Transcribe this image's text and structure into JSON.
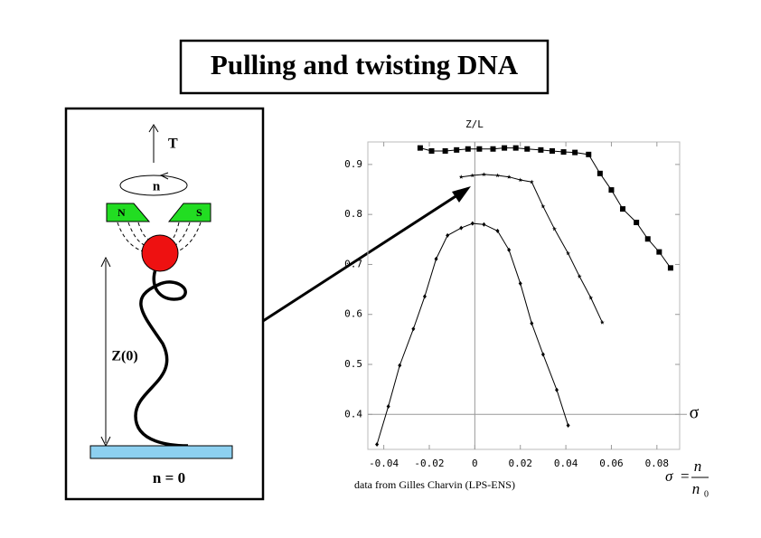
{
  "title": "Pulling and twisting DNA",
  "diagram": {
    "force": "T",
    "twist": "n",
    "magnet_left": "N",
    "magnet_right": "S",
    "extension": "Z(0)",
    "caption": "n = 0"
  },
  "credit": "data from Gilles Charvin (LPS-ENS)",
  "formula": {
    "lhs": "σ",
    "eq": "=",
    "num": "n",
    "den": "n",
    "sub": "0"
  },
  "chart_data": {
    "type": "line",
    "ylabel": "Z/L",
    "xlabel": "σ",
    "xlim": [
      -0.047,
      0.09
    ],
    "ylim": [
      0.33,
      0.945
    ],
    "xticks": [
      -0.04,
      -0.02,
      0,
      0.02,
      0.04,
      0.06,
      0.08
    ],
    "yticks": [
      0.4,
      0.5,
      0.6,
      0.7,
      0.8,
      0.9
    ],
    "axis_cross": {
      "x": 0,
      "y": 0.4
    },
    "series": [
      {
        "color": "#000000",
        "marker": "square",
        "x": [
          -0.024,
          -0.019,
          -0.013,
          -0.008,
          -0.003,
          0.002,
          0.008,
          0.013,
          0.018,
          0.023,
          0.029,
          0.034,
          0.039,
          0.044,
          0.05,
          0.055,
          0.06,
          0.065,
          0.071,
          0.076,
          0.081,
          0.086
        ],
        "values": [
          0.933,
          0.927,
          0.927,
          0.929,
          0.931,
          0.931,
          0.931,
          0.933,
          0.933,
          0.931,
          0.929,
          0.927,
          0.925,
          0.924,
          0.92,
          0.882,
          0.849,
          0.811,
          0.784,
          0.751,
          0.725,
          0.693
        ]
      },
      {
        "color": "#000000",
        "marker": "star",
        "x": [
          -0.006,
          -0.001,
          0.004,
          0.01,
          0.015,
          0.02,
          0.025,
          0.03,
          0.035,
          0.041,
          0.046,
          0.051,
          0.056
        ],
        "values": [
          0.875,
          0.878,
          0.88,
          0.878,
          0.875,
          0.869,
          0.865,
          0.816,
          0.771,
          0.722,
          0.676,
          0.633,
          0.584
        ]
      },
      {
        "color": "#000000",
        "marker": "diamond",
        "x": [
          -0.043,
          -0.038,
          -0.033,
          -0.027,
          -0.022,
          -0.017,
          -0.012,
          -0.006,
          -0.001,
          0.004,
          0.01,
          0.015,
          0.02,
          0.025,
          0.03,
          0.036,
          0.041
        ],
        "values": [
          0.34,
          0.416,
          0.498,
          0.571,
          0.636,
          0.711,
          0.758,
          0.773,
          0.782,
          0.78,
          0.767,
          0.729,
          0.662,
          0.582,
          0.52,
          0.449,
          0.378
        ]
      }
    ]
  }
}
